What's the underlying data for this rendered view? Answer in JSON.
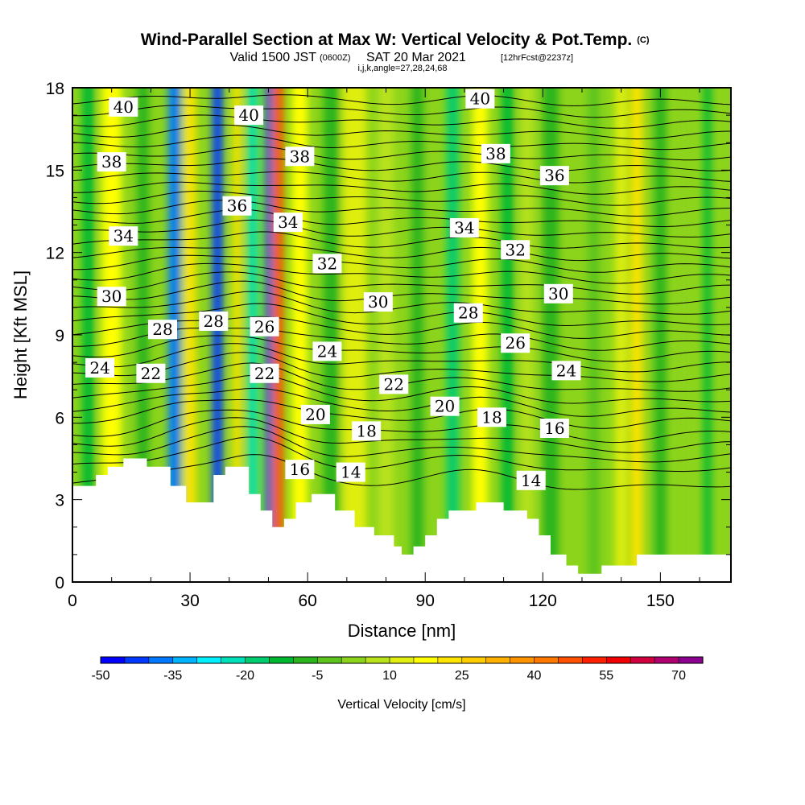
{
  "chart_data": {
    "type": "heatmap",
    "title": "Wind-Parallel Section at Max W: Vertical Velocity & Pot.Temp.",
    "title_mark": "(C)",
    "subtitle_a": "Valid 1500 JST",
    "subtitle_b": "(0600Z)",
    "subtitle_c": "SAT 20 Mar 2021",
    "subtitle_d": "[12hrFcst@2237z]",
    "subtitle_e": "i,j,k,angle=27,28,24,68",
    "xlabel": "Distance [nm]",
    "ylabel": "Height [Kft MSL]",
    "xlim": [
      0,
      168
    ],
    "ylim": [
      0,
      18
    ],
    "x_ticks": [
      0,
      30,
      60,
      90,
      120,
      150
    ],
    "y_ticks": [
      0,
      3,
      6,
      9,
      12,
      15,
      18
    ],
    "colorbar": {
      "label": "Vertical Velocity [cm/s]",
      "levels": [
        -50,
        -45,
        -40,
        -35,
        -30,
        -25,
        -20,
        -15,
        -10,
        -5,
        0,
        5,
        10,
        15,
        20,
        25,
        30,
        35,
        40,
        45,
        50,
        55,
        60,
        65,
        70,
        75
      ],
      "tick_labels": [
        "-50",
        "-35",
        "-20",
        "-5",
        "10",
        "25",
        "40",
        "55",
        "70"
      ],
      "colors": [
        "#0000ff",
        "#0038ff",
        "#0078ff",
        "#00b4ff",
        "#00f0ff",
        "#00e0b8",
        "#00cc70",
        "#00b830",
        "#2cb41e",
        "#5cc41c",
        "#8cd41c",
        "#b8e21c",
        "#e0ee10",
        "#ffff00",
        "#ffe400",
        "#ffcc00",
        "#ffb000",
        "#ff9400",
        "#ff7800",
        "#ff5000",
        "#ff2000",
        "#f00000",
        "#d00040",
        "#b00070",
        "#8c0090"
      ]
    },
    "velocity_bands": [
      {
        "x": 4,
        "w": 3,
        "v": -14
      },
      {
        "x": 10,
        "w": 5,
        "v": 16
      },
      {
        "x": 18,
        "w": 3,
        "v": -8
      },
      {
        "x": 26,
        "w": 3,
        "v": -40
      },
      {
        "x": 30,
        "w": 3,
        "v": 22
      },
      {
        "x": 37,
        "w": 2.5,
        "v": -45
      },
      {
        "x": 42,
        "w": 2,
        "v": 22
      },
      {
        "x": 46,
        "w": 2.5,
        "v": -25
      },
      {
        "x": 50,
        "w": 1.5,
        "v": -45
      },
      {
        "x": 52.5,
        "w": 2.5,
        "v": 45
      },
      {
        "x": 58,
        "w": 4,
        "v": 15
      },
      {
        "x": 66,
        "w": 4,
        "v": -6
      },
      {
        "x": 72,
        "w": 6,
        "v": 10
      },
      {
        "x": 80,
        "w": 4,
        "v": 6
      },
      {
        "x": 88,
        "w": 3,
        "v": -8
      },
      {
        "x": 97,
        "w": 3,
        "v": -18
      },
      {
        "x": 104,
        "w": 4,
        "v": 18
      },
      {
        "x": 111,
        "w": 3,
        "v": -12
      },
      {
        "x": 116,
        "w": 3,
        "v": 8
      },
      {
        "x": 122,
        "w": 4,
        "v": -10
      },
      {
        "x": 133,
        "w": 3,
        "v": -5
      },
      {
        "x": 140,
        "w": 3,
        "v": 10
      },
      {
        "x": 144,
        "w": 3,
        "v": 22
      },
      {
        "x": 150,
        "w": 3,
        "v": -10
      },
      {
        "x": 156,
        "w": 3,
        "v": 3
      },
      {
        "x": 162,
        "w": 2,
        "v": -12
      }
    ],
    "terrain": [
      [
        0,
        3.5
      ],
      [
        6,
        3.5
      ],
      [
        6,
        3.9
      ],
      [
        9,
        3.9
      ],
      [
        9,
        4.2
      ],
      [
        13,
        4.2
      ],
      [
        13,
        4.5
      ],
      [
        19,
        4.5
      ],
      [
        19,
        4.2
      ],
      [
        25,
        4.2
      ],
      [
        25,
        3.5
      ],
      [
        29,
        3.5
      ],
      [
        29,
        2.9
      ],
      [
        36,
        2.9
      ],
      [
        36,
        3.9
      ],
      [
        39,
        3.9
      ],
      [
        39,
        4.2
      ],
      [
        45,
        4.2
      ],
      [
        45,
        3.2
      ],
      [
        48,
        3.2
      ],
      [
        48,
        2.6
      ],
      [
        51,
        2.6
      ],
      [
        51,
        2.0
      ],
      [
        54,
        2.0
      ],
      [
        54,
        2.3
      ],
      [
        57,
        2.3
      ],
      [
        57,
        2.9
      ],
      [
        61,
        2.9
      ],
      [
        61,
        3.2
      ],
      [
        67,
        3.2
      ],
      [
        67,
        2.6
      ],
      [
        72,
        2.6
      ],
      [
        72,
        2.0
      ],
      [
        77,
        2.0
      ],
      [
        77,
        1.7
      ],
      [
        82,
        1.7
      ],
      [
        82,
        1.3
      ],
      [
        84,
        1.3
      ],
      [
        84,
        1.0
      ],
      [
        87,
        1.0
      ],
      [
        87,
        1.3
      ],
      [
        90,
        1.3
      ],
      [
        90,
        1.7
      ],
      [
        93,
        1.7
      ],
      [
        93,
        2.3
      ],
      [
        96,
        2.3
      ],
      [
        96,
        2.6
      ],
      [
        103,
        2.6
      ],
      [
        103,
        2.9
      ],
      [
        110,
        2.9
      ],
      [
        110,
        2.6
      ],
      [
        116,
        2.6
      ],
      [
        116,
        2.3
      ],
      [
        119,
        2.3
      ],
      [
        119,
        1.7
      ],
      [
        122,
        1.7
      ],
      [
        122,
        1.0
      ],
      [
        126,
        1.0
      ],
      [
        126,
        0.6
      ],
      [
        129,
        0.6
      ],
      [
        129,
        0.3
      ],
      [
        135,
        0.3
      ],
      [
        135,
        0.6
      ],
      [
        144,
        0.6
      ],
      [
        144,
        1.0
      ],
      [
        168,
        1.0
      ]
    ],
    "theta_contour_base_heights": [
      3.6,
      4.2,
      4.6,
      5.0,
      5.4,
      5.9,
      6.3,
      6.7,
      7.1,
      7.5,
      7.9,
      8.3,
      8.7,
      9.1,
      9.5,
      9.9,
      10.3,
      10.7,
      11.1,
      11.5,
      11.9,
      12.3,
      12.7,
      13.1,
      13.5,
      13.9,
      14.3,
      14.7,
      15.1,
      15.5,
      15.9,
      16.3,
      16.7,
      17.1,
      17.5
    ],
    "contour_labels": [
      {
        "text": "40",
        "x": 13,
        "y": 17.3
      },
      {
        "text": "40",
        "x": 45,
        "y": 17.0
      },
      {
        "text": "40",
        "x": 104,
        "y": 17.6
      },
      {
        "text": "38",
        "x": 10,
        "y": 15.3
      },
      {
        "text": "38",
        "x": 58,
        "y": 15.5
      },
      {
        "text": "38",
        "x": 108,
        "y": 15.6
      },
      {
        "text": "36",
        "x": 42,
        "y": 13.7
      },
      {
        "text": "36",
        "x": 123,
        "y": 14.8
      },
      {
        "text": "34",
        "x": 13,
        "y": 12.6
      },
      {
        "text": "34",
        "x": 55,
        "y": 13.1
      },
      {
        "text": "34",
        "x": 100,
        "y": 12.9
      },
      {
        "text": "32",
        "x": 65,
        "y": 11.6
      },
      {
        "text": "32",
        "x": 113,
        "y": 12.1
      },
      {
        "text": "30",
        "x": 10,
        "y": 10.4
      },
      {
        "text": "30",
        "x": 78,
        "y": 10.2
      },
      {
        "text": "30",
        "x": 124,
        "y": 10.5
      },
      {
        "text": "28",
        "x": 23,
        "y": 9.2
      },
      {
        "text": "28",
        "x": 36,
        "y": 9.5
      },
      {
        "text": "28",
        "x": 101,
        "y": 9.8
      },
      {
        "text": "26",
        "x": 49,
        "y": 9.3
      },
      {
        "text": "26",
        "x": 113,
        "y": 8.7
      },
      {
        "text": "24",
        "x": 7,
        "y": 7.8
      },
      {
        "text": "24",
        "x": 65,
        "y": 8.4
      },
      {
        "text": "24",
        "x": 126,
        "y": 7.7
      },
      {
        "text": "22",
        "x": 20,
        "y": 7.6
      },
      {
        "text": "22",
        "x": 49,
        "y": 7.6
      },
      {
        "text": "22",
        "x": 82,
        "y": 7.2
      },
      {
        "text": "20",
        "x": 62,
        "y": 6.1
      },
      {
        "text": "20",
        "x": 95,
        "y": 6.4
      },
      {
        "text": "18",
        "x": 75,
        "y": 5.5
      },
      {
        "text": "18",
        "x": 107,
        "y": 6.0
      },
      {
        "text": "16",
        "x": 58,
        "y": 4.1
      },
      {
        "text": "16",
        "x": 123,
        "y": 5.6
      },
      {
        "text": "14",
        "x": 71,
        "y": 4.0
      },
      {
        "text": "14",
        "x": 117,
        "y": 3.7
      }
    ]
  }
}
